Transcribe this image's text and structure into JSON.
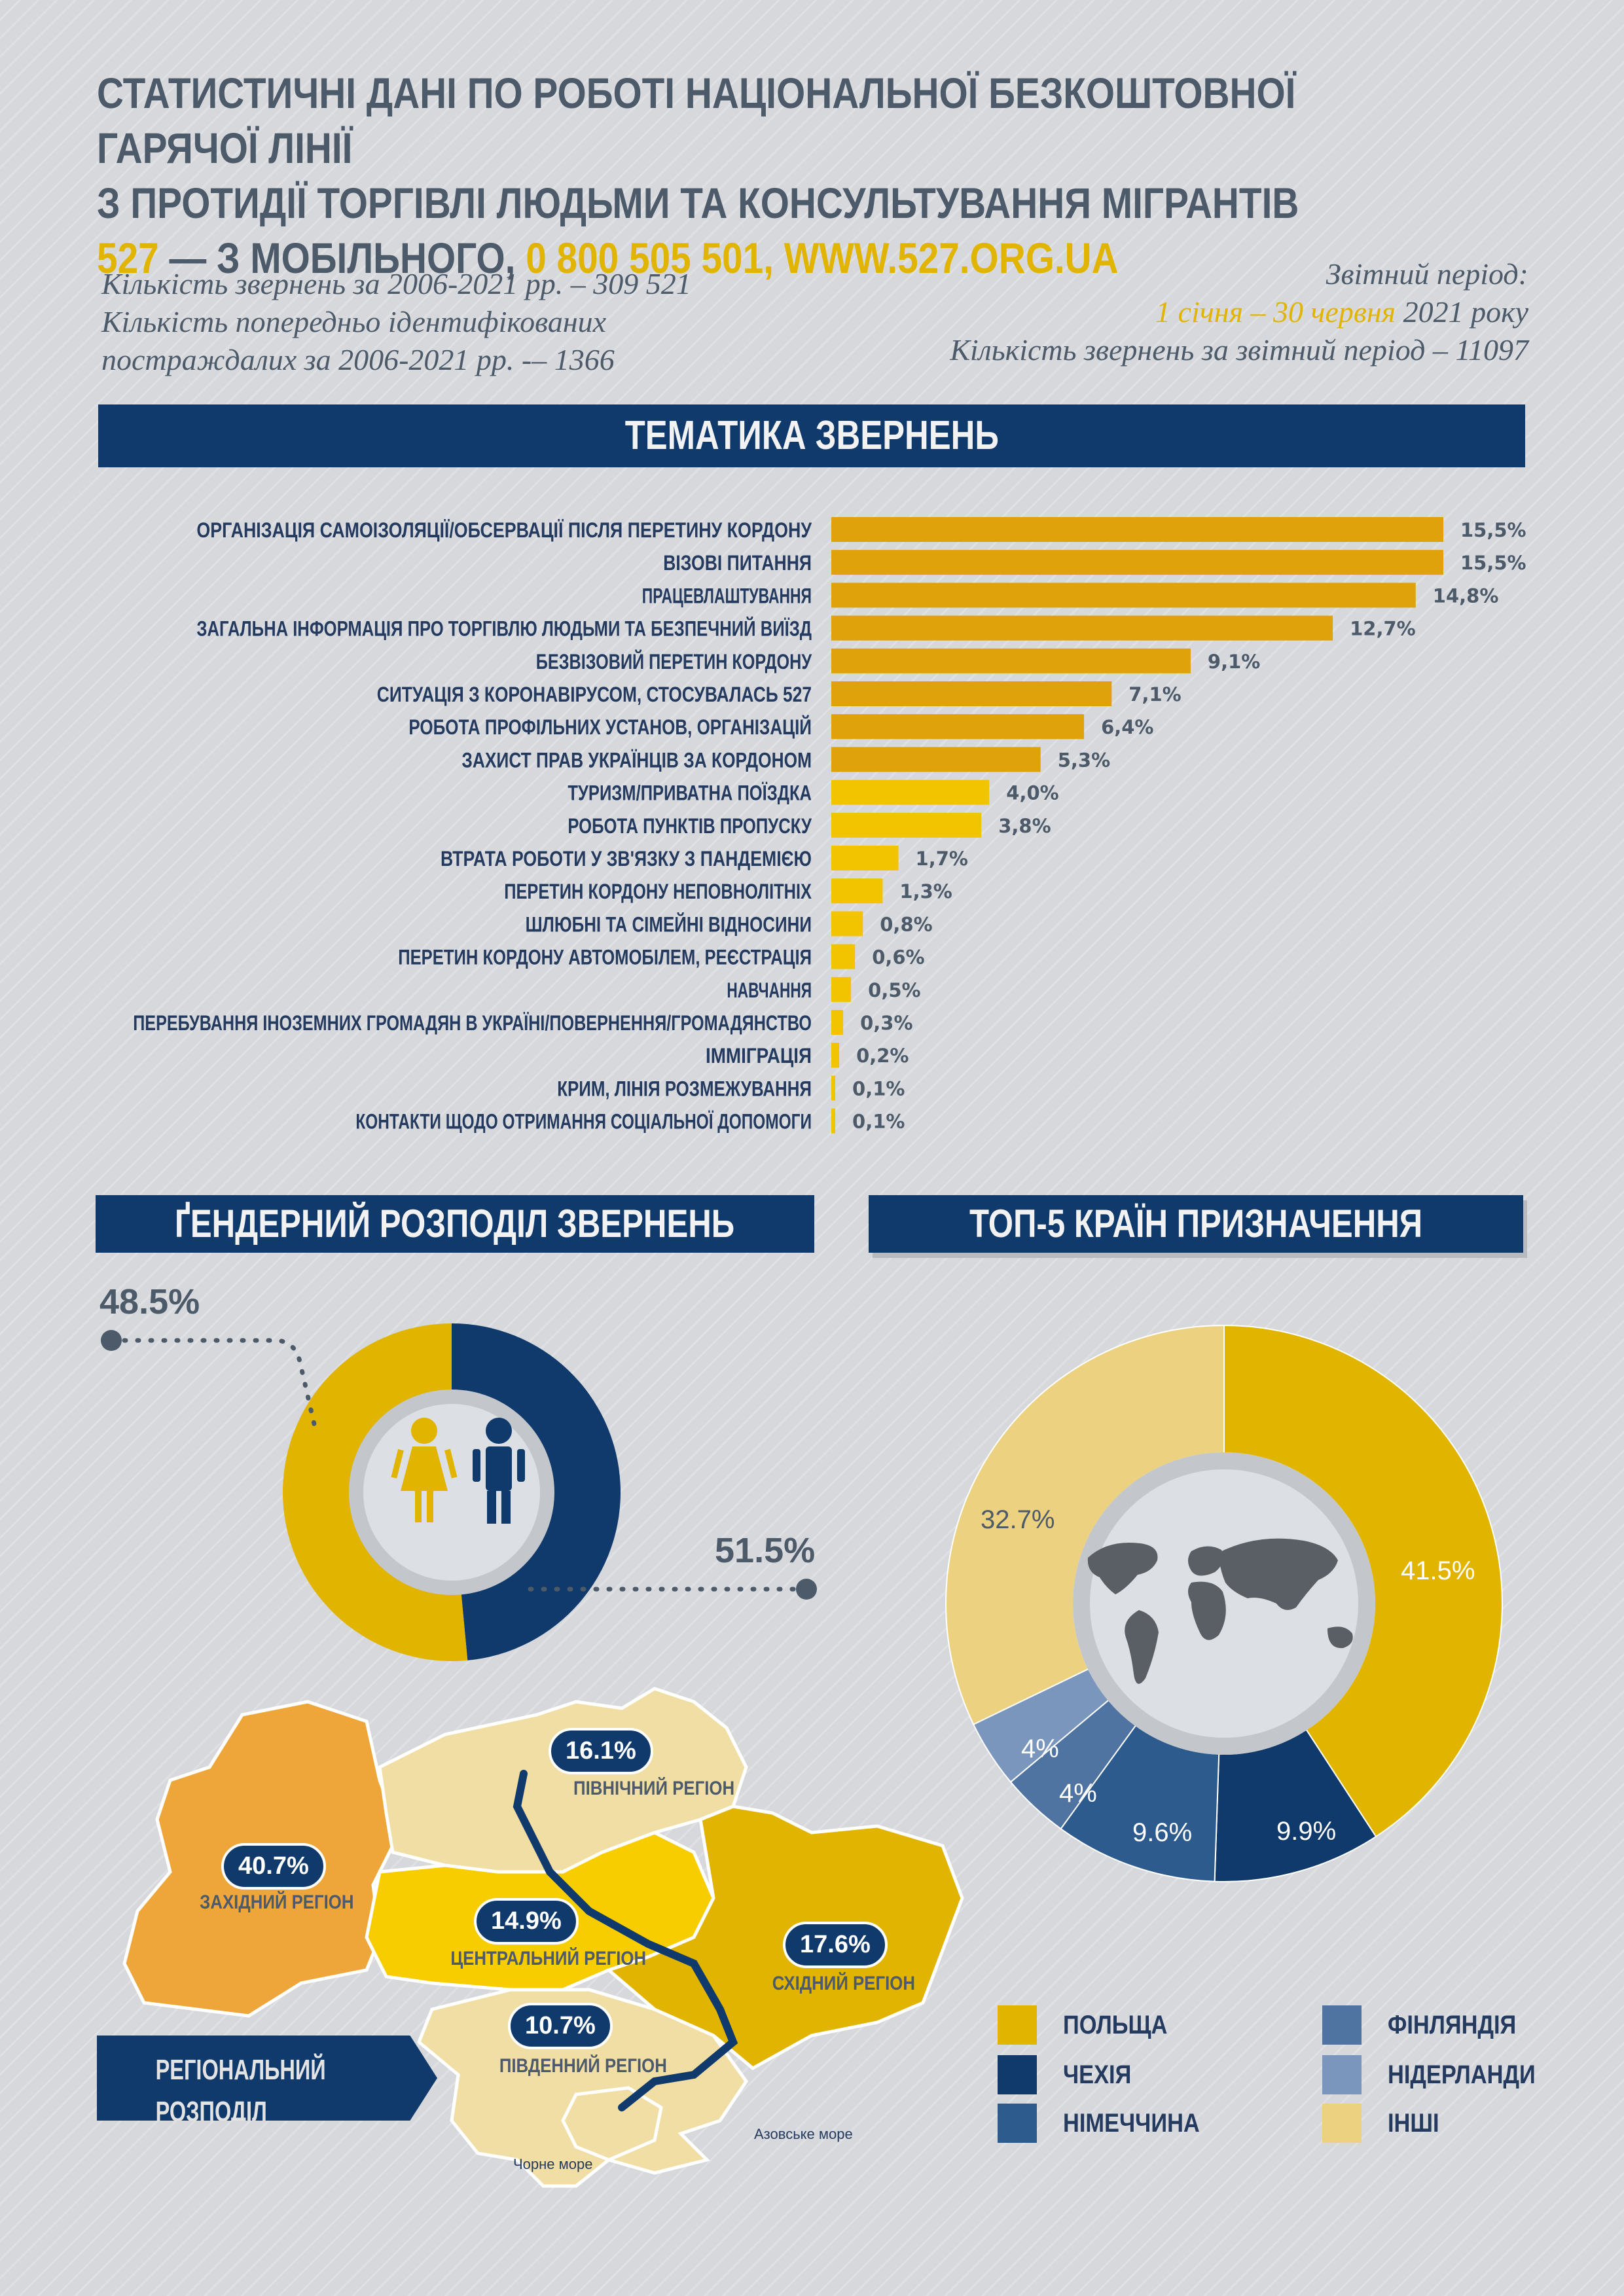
{
  "header": {
    "title_line1": "СТАТИСТИЧНІ ДАНІ ПО РОБОТІ НАЦІОНАЛЬНОЇ БЕЗКОШТОВНОЇ ГАРЯЧОЇ ЛІНІЇ",
    "title_line2": "З ПРОТИДІЇ ТОРГІВЛІ ЛЮДЬМИ ТА КОНСУЛЬТУВАННЯ МІГРАНТІВ",
    "hotline_mobile": "527",
    "hotline_mobile_text": " — З МОБІЛЬНОГО, ",
    "hotline_phone": "0 800 505 501, WWW.527.ORG.UA"
  },
  "intro": {
    "left_line1": "Кількість звернень за  2006-2021 рр. – 309 521",
    "left_line2": "Кількість попередньо ідентифікованих",
    "left_line3": "постраждалих за 2006-2021 рр. -– 1366",
    "right_line1": "Звітний період:",
    "right_period": "1 січня – 30 червня",
    "right_year": " 2021 року",
    "right_line3": "Кількість звернень за звітний період – 11097"
  },
  "sections": {
    "topics": "ТЕМАТИКА ЗВЕРНЕНЬ",
    "gender": "ҐЕНДЕРНИЙ РОЗПОДІЛ ЗВЕРНЕНЬ",
    "countries": "ТОП-5 КРАЇН ПРИЗНАЧЕННЯ",
    "regional_line1": "РЕГІОНАЛЬНИЙ",
    "regional_line2": "РОЗПОДІЛ ЗВЕРНЕНЬ"
  },
  "chart_data": [
    {
      "type": "bar",
      "title": "ТЕМАТИКА ЗВЕРНЕНЬ",
      "categories": [
        "ОРГАНІЗАЦІЯ САМОІЗОЛЯЦІЇ/ОБСЕРВАЦІЇ ПІСЛЯ ПЕРЕТИНУ КОРДОНУ",
        "ВІЗОВІ ПИТАННЯ",
        "ПРАЦЕВЛАШТУВАННЯ",
        "ЗАГАЛЬНА ІНФОРМАЦІЯ ПРО ТОРГІВЛЮ ЛЮДЬМИ ТА БЕЗПЕЧНИЙ ВИЇЗД",
        "БЕЗВІЗОВИЙ ПЕРЕТИН КОРДОНУ",
        "СИТУАЦІЯ З КОРОНАВІРУСОМ, СТОСУВАЛАСЬ 527",
        "РОБОТА ПРОФІЛЬНИХ УСТАНОВ, ОРГАНІЗАЦІЙ",
        "ЗАХИСТ ПРАВ УКРАЇНЦІВ ЗА КОРДОНОМ",
        "ТУРИЗМ/ПРИВАТНА ПОЇЗДКА",
        "РОБОТА ПУНКТІВ ПРОПУСКУ",
        "ВТРАТА РОБОТИ У ЗВ'ЯЗКУ З ПАНДЕМІЄЮ",
        "ПЕРЕТИН КОРДОНУ НЕПОВНОЛІТНІХ",
        "ШЛЮБНІ ТА СІМЕЙНІ ВІДНОСИНИ",
        "ПЕРЕТИН КОРДОНУ АВТОМОБІЛЕМ, РЕЄСТРАЦІЯ",
        "НАВЧАННЯ",
        "ПЕРЕБУВАННЯ ІНОЗЕМНИХ ГРОМАДЯН В УКРАЇНІ/ПОВЕРНЕННЯ/ГРОМАДЯНСТВО",
        "ІММІГРАЦІЯ",
        "КРИМ, ЛІНІЯ РОЗМЕЖУВАННЯ",
        "КОНТАКТИ ЩОДО ОТРИМАННЯ СОЦІАЛЬНОЇ ДОПОМОГИ"
      ],
      "values": [
        15.5,
        15.5,
        14.8,
        12.7,
        9.1,
        7.1,
        6.4,
        5.3,
        4.0,
        3.8,
        1.7,
        1.3,
        0.8,
        0.6,
        0.5,
        0.3,
        0.2,
        0.1,
        0.1
      ],
      "value_labels": [
        "15,5%",
        "15,5%",
        "14,8%",
        "12,7%",
        "9,1%",
        "7,1%",
        "6,4%",
        "5,3%",
        "4,0%",
        "3,8%",
        "1,7%",
        "1,3%",
        "0,8%",
        "0,6%",
        "0,5%",
        "0,3%",
        "0,2%",
        "0,1%",
        "0,1%"
      ],
      "colors": {
        "dark": "#e0a20b",
        "light": "#f2c400"
      }
    },
    {
      "type": "pie",
      "title": "ҐЕНДЕРНИЙ РОЗПОДІЛ ЗВЕРНЕНЬ",
      "slices": [
        {
          "label": "48.5%",
          "value": 48.5,
          "color": "#0f3a6b"
        },
        {
          "label": "51.5%",
          "value": 51.5,
          "color": "#e1b400"
        }
      ]
    },
    {
      "type": "pie",
      "title": "ТОП-5 КРАЇН ПРИЗНАЧЕННЯ",
      "slices": [
        {
          "name": "ПОЛЬЩА",
          "label": "41.5%",
          "value": 41.5,
          "color": "#e1b400"
        },
        {
          "name": "ЧЕХІЯ",
          "label": "9.9%",
          "value": 9.9,
          "color": "#0f3a6b"
        },
        {
          "name": "НІМЕЧЧИНА",
          "label": "9.6%",
          "value": 9.6,
          "color": "#2e5b8e"
        },
        {
          "name": "ФІНЛЯНДІЯ",
          "label": "4%",
          "value": 4,
          "color": "#4f74a2"
        },
        {
          "name": "НІДЕРЛАНДИ",
          "label": "4%",
          "value": 4,
          "color": "#7a96bd"
        },
        {
          "name": "ІНШІ",
          "label": "32.7%",
          "value": 32.7,
          "color": "#ecd280"
        }
      ]
    }
  ],
  "regions": [
    {
      "pct": "16.1%",
      "name": "ПІВНІЧНИЙ РЕГІОН"
    },
    {
      "pct": "40.7%",
      "name": "ЗАХІДНИЙ РЕГІОН"
    },
    {
      "pct": "14.9%",
      "name": "ЦЕНТРАЛЬНИЙ РЕГІОН"
    },
    {
      "pct": "17.6%",
      "name": "СХІДНИЙ РЕГІОН"
    },
    {
      "pct": "10.7%",
      "name": "ПІВДЕННИЙ РЕГІОН"
    }
  ],
  "seas": {
    "black": "Чорне море",
    "azov": "Азовське море"
  }
}
